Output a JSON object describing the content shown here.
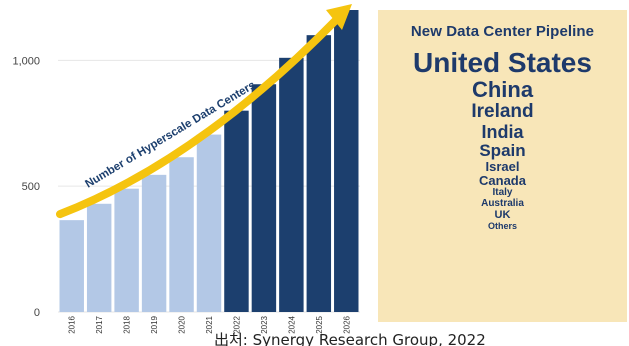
{
  "chart_data": {
    "type": "bar",
    "categories": [
      "2016",
      "2017",
      "2018",
      "2019",
      "2020",
      "2021",
      "2022",
      "2023",
      "2024",
      "2025",
      "2026"
    ],
    "values": [
      365,
      430,
      490,
      545,
      615,
      705,
      800,
      905,
      1010,
      1100,
      1200
    ],
    "projected_from": "2022",
    "annotation": "Number of Hyperscale Data Centers",
    "yticks": [
      0,
      500,
      1000
    ],
    "ytick_labels": [
      "0",
      "500",
      "1,000"
    ],
    "ylim": [
      0,
      1200
    ],
    "colors": {
      "historical": "#b3c8e6",
      "projected": "#1c3f6e",
      "arrow": "#f5c40f"
    }
  },
  "pipeline": {
    "title": "New Data Center Pipeline",
    "countries": [
      {
        "name": "United States",
        "size": 28
      },
      {
        "name": "China",
        "size": 22
      },
      {
        "name": "Ireland",
        "size": 19
      },
      {
        "name": "India",
        "size": 18
      },
      {
        "name": "Spain",
        "size": 17
      },
      {
        "name": "Israel",
        "size": 13
      },
      {
        "name": "Canada",
        "size": 13
      },
      {
        "name": "Italy",
        "size": 10
      },
      {
        "name": "Australia",
        "size": 10
      },
      {
        "name": "UK",
        "size": 11
      },
      {
        "name": "Others",
        "size": 9
      }
    ]
  },
  "caption": "出처: Synergy Research Group, 2022"
}
